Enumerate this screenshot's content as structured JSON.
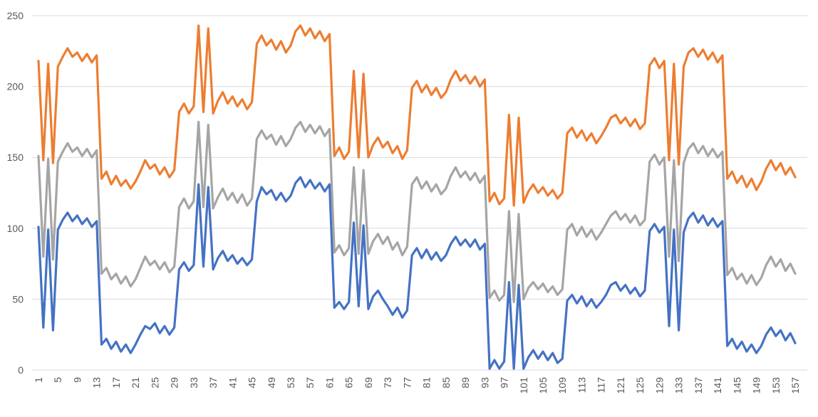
{
  "chart_data": {
    "type": "line",
    "title": "",
    "xlabel": "",
    "ylabel": "",
    "ylim": [
      0,
      250
    ],
    "yticks": [
      0,
      50,
      100,
      150,
      200,
      250
    ],
    "grid": true,
    "legend": "none",
    "x_start": 1,
    "x_end": 157,
    "x_tick_labels": [
      "1",
      "5",
      "9",
      "13",
      "17",
      "21",
      "25",
      "29",
      "33",
      "37",
      "41",
      "45",
      "49",
      "53",
      "57",
      "61",
      "65",
      "69",
      "73",
      "77",
      "81",
      "85",
      "89",
      "93",
      "97",
      "101",
      "105",
      "109",
      "113",
      "117",
      "121",
      "125",
      "129",
      "133",
      "137",
      "141",
      "145",
      "149",
      "153",
      "157"
    ],
    "x_tick_positions": [
      1,
      5,
      9,
      13,
      17,
      21,
      25,
      29,
      33,
      37,
      41,
      45,
      49,
      53,
      57,
      61,
      65,
      69,
      73,
      77,
      81,
      85,
      89,
      93,
      97,
      101,
      105,
      109,
      113,
      117,
      121,
      125,
      129,
      133,
      137,
      141,
      145,
      149,
      153,
      157
    ],
    "series": [
      {
        "color": "#4472C4",
        "values": [
          101,
          30,
          99,
          28,
          99,
          106,
          111,
          105,
          109,
          103,
          107,
          101,
          105,
          18,
          22,
          15,
          20,
          13,
          18,
          12,
          18,
          25,
          31,
          29,
          33,
          26,
          31,
          25,
          30,
          71,
          76,
          70,
          74,
          131,
          73,
          129,
          71,
          79,
          84,
          77,
          81,
          75,
          79,
          74,
          78,
          119,
          129,
          124,
          127,
          120,
          125,
          119,
          123,
          132,
          136,
          129,
          134,
          128,
          132,
          126,
          131,
          44,
          48,
          43,
          48,
          104,
          45,
          102,
          43,
          52,
          56,
          50,
          45,
          39,
          44,
          37,
          42,
          81,
          86,
          79,
          85,
          78,
          83,
          77,
          81,
          89,
          94,
          88,
          92,
          87,
          92,
          85,
          89,
          1,
          7,
          1,
          6,
          62,
          1,
          60,
          1,
          9,
          14,
          8,
          13,
          7,
          12,
          5,
          8,
          49,
          53,
          47,
          52,
          45,
          50,
          44,
          48,
          53,
          60,
          62,
          56,
          60,
          54,
          58,
          52,
          56,
          98,
          103,
          97,
          101,
          31,
          99,
          28,
          97,
          107,
          111,
          104,
          109,
          102,
          107,
          101,
          105,
          17,
          22,
          15,
          20,
          13,
          18,
          12,
          17,
          25,
          30,
          24,
          28,
          21,
          26,
          19
        ],
        "yellow_marks": false
      },
      {
        "color": "#A5A5A5",
        "values": [
          151,
          80,
          149,
          78,
          147,
          154,
          160,
          154,
          157,
          151,
          156,
          150,
          155,
          68,
          72,
          64,
          68,
          61,
          66,
          59,
          64,
          72,
          80,
          74,
          77,
          71,
          76,
          69,
          73,
          115,
          121,
          114,
          119,
          175,
          115,
          173,
          114,
          122,
          128,
          120,
          125,
          118,
          124,
          116,
          121,
          163,
          169,
          163,
          166,
          159,
          165,
          158,
          163,
          171,
          175,
          168,
          173,
          167,
          172,
          165,
          170,
          83,
          88,
          81,
          86,
          143,
          82,
          141,
          82,
          91,
          96,
          89,
          94,
          85,
          90,
          81,
          87,
          131,
          136,
          128,
          133,
          126,
          131,
          124,
          128,
          137,
          143,
          136,
          140,
          134,
          139,
          132,
          137,
          51,
          56,
          49,
          53,
          112,
          48,
          110,
          50,
          58,
          62,
          57,
          61,
          55,
          59,
          53,
          57,
          99,
          103,
          95,
          101,
          94,
          99,
          92,
          97,
          103,
          109,
          112,
          106,
          110,
          104,
          109,
          102,
          106,
          147,
          152,
          145,
          150,
          80,
          148,
          77,
          146,
          156,
          160,
          153,
          158,
          151,
          156,
          150,
          154,
          67,
          72,
          64,
          68,
          61,
          67,
          60,
          65,
          74,
          80,
          73,
          78,
          70,
          75,
          68
        ],
        "yellow_marks": false
      },
      {
        "color": "#ED7D31",
        "values": [
          218,
          148,
          216,
          146,
          214,
          221,
          227,
          221,
          224,
          218,
          223,
          217,
          222,
          135,
          140,
          131,
          137,
          130,
          134,
          128,
          133,
          140,
          148,
          142,
          145,
          138,
          143,
          136,
          141,
          182,
          188,
          181,
          186,
          243,
          182,
          241,
          181,
          190,
          196,
          188,
          193,
          186,
          191,
          184,
          189,
          230,
          236,
          229,
          233,
          226,
          232,
          224,
          229,
          239,
          243,
          236,
          241,
          234,
          239,
          232,
          237,
          151,
          157,
          149,
          154,
          211,
          150,
          209,
          150,
          159,
          164,
          157,
          161,
          153,
          158,
          149,
          155,
          199,
          204,
          196,
          201,
          194,
          199,
          192,
          196,
          205,
          211,
          204,
          208,
          202,
          207,
          200,
          205,
          119,
          125,
          117,
          121,
          180,
          116,
          178,
          118,
          126,
          131,
          125,
          129,
          123,
          127,
          121,
          125,
          167,
          171,
          164,
          169,
          162,
          167,
          160,
          165,
          171,
          178,
          180,
          174,
          178,
          172,
          177,
          170,
          174,
          215,
          220,
          213,
          218,
          148,
          216,
          145,
          214,
          224,
          227,
          221,
          226,
          219,
          224,
          217,
          222,
          135,
          140,
          132,
          137,
          129,
          135,
          127,
          133,
          142,
          148,
          141,
          146,
          138,
          143,
          136
        ],
        "yellow_marks": false
      }
    ]
  }
}
